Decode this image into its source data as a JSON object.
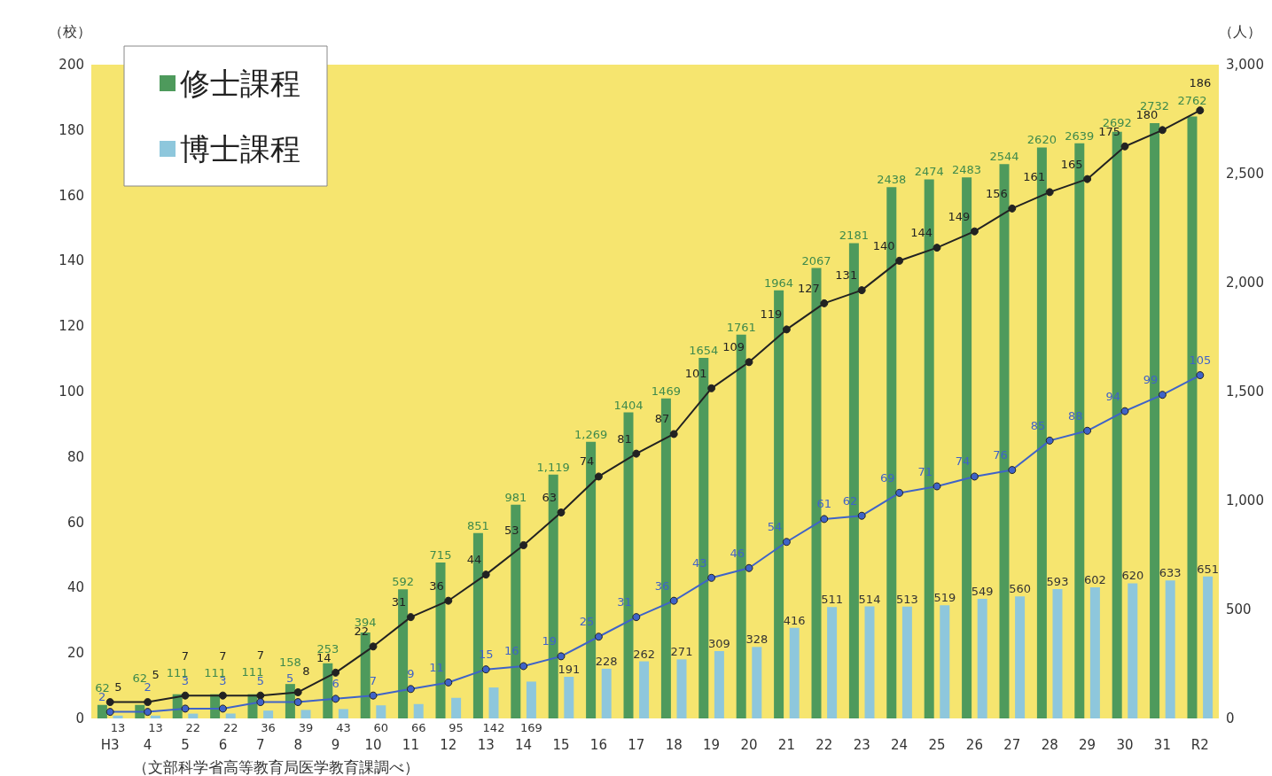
{
  "chart_data": {
    "type": "bar",
    "categories": [
      "H3",
      "4",
      "5",
      "6",
      "7",
      "8",
      "9",
      "10",
      "11",
      "12",
      "13",
      "14",
      "15",
      "16",
      "17",
      "18",
      "19",
      "20",
      "21",
      "22",
      "23",
      "24",
      "25",
      "26",
      "27",
      "28",
      "29",
      "30",
      "31",
      "R2"
    ],
    "series": [
      {
        "name": "修士課程",
        "axis": "y2",
        "color": "#4e9a5c",
        "values": [
          62,
          62,
          111,
          111,
          111,
          158,
          253,
          394,
          592,
          715,
          851,
          981,
          1119,
          1269,
          1404,
          1469,
          1654,
          1761,
          1964,
          2067,
          2181,
          2438,
          2474,
          2483,
          2544,
          2620,
          2639,
          2692,
          2732,
          2762
        ],
        "value_labels": [
          "62",
          "62",
          "111",
          "111",
          "111",
          "158",
          "253",
          "394",
          "592",
          "715",
          "851",
          "981",
          "1,119",
          "1,269",
          "1404",
          "1469",
          "1654",
          "1761",
          "1964",
          "2067",
          "2181",
          "2438",
          "2474",
          "2483",
          "2544",
          "2620",
          "2639",
          "2692",
          "2732",
          "2762"
        ]
      },
      {
        "name": "博士課程",
        "axis": "y2",
        "color": "#8ec7dc",
        "values": [
          13,
          13,
          22,
          22,
          36,
          39,
          43,
          60,
          66,
          95,
          142,
          169,
          191,
          228,
          262,
          271,
          309,
          328,
          416,
          511,
          514,
          513,
          519,
          549,
          560,
          593,
          602,
          620,
          633,
          651
        ]
      },
      {
        "type": "line",
        "color": "#222222",
        "values": [
          5,
          5,
          7,
          7,
          7,
          8,
          14,
          22,
          31,
          36,
          44,
          53,
          63,
          74,
          81,
          87,
          101,
          109,
          119,
          127,
          131,
          140,
          144,
          149,
          156,
          161,
          165,
          175,
          180,
          186
        ]
      },
      {
        "type": "line",
        "color": "#3f63c8",
        "values": [
          2,
          2,
          3,
          3,
          5,
          5,
          6,
          7,
          9,
          11,
          15,
          16,
          19,
          25,
          31,
          36,
          43,
          46,
          54,
          61,
          62,
          69,
          71,
          74,
          76,
          85,
          88,
          94,
          99,
          105
        ]
      }
    ],
    "ylabel": "（校）",
    "y2label": "（人）",
    "ylim": [
      0,
      200
    ],
    "yticks": [
      0,
      20,
      40,
      60,
      80,
      100,
      120,
      140,
      160,
      180,
      200
    ],
    "y2lim": [
      0,
      3000
    ],
    "y2ticks": [
      0,
      500,
      {
        "value": 1000,
        "label": "1,000"
      },
      {
        "value": 1500,
        "label": "1,500"
      },
      {
        "value": 2000,
        "label": "2,000"
      },
      {
        "value": 2500,
        "label": "2,500"
      },
      {
        "value": 3000,
        "label": "3,000"
      }
    ],
    "annotations": [
      "（文部科学省高等教育局医学教育課調べ）"
    ],
    "data_labels": true,
    "grid": false,
    "legend": "top left",
    "marker": "circle",
    "line_style": "solid"
  }
}
